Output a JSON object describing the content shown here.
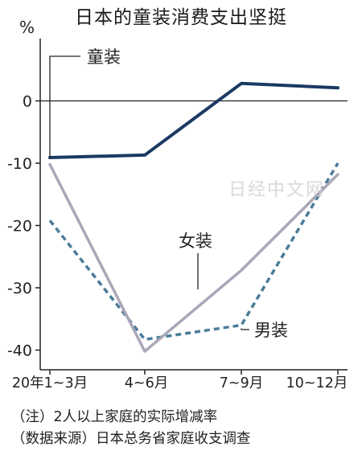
{
  "chart_data": {
    "type": "line",
    "title": "日本的童装消费支出坚挺",
    "unit": "%",
    "categories": [
      "20年1~3月",
      "4~6月",
      "7~9月",
      "10~12月"
    ],
    "ylim": [
      -43,
      10
    ],
    "yticks": [
      0,
      -10,
      -20,
      -30,
      -40
    ],
    "grid": false,
    "series": [
      {
        "name": "童装",
        "values": [
          -9.1,
          -8.7,
          2.8,
          2.1
        ],
        "color": "#1b3a63",
        "style": "solid",
        "width": 4
      },
      {
        "name": "女装",
        "values": [
          -10.2,
          -40.2,
          -27.2,
          -11.8
        ],
        "color": "#a9a7b8",
        "style": "solid",
        "width": 3.5
      },
      {
        "name": "男装",
        "values": [
          -19.2,
          -38.3,
          -36.0,
          -10.0
        ],
        "color": "#4a7d99",
        "style": "dashed",
        "width": 3.5
      }
    ]
  },
  "notes": {
    "note": "（注）2人以上家庭的实际增减率",
    "source": "（数据来源）日本总务省家庭收支调查"
  },
  "watermark": "日经中文网"
}
